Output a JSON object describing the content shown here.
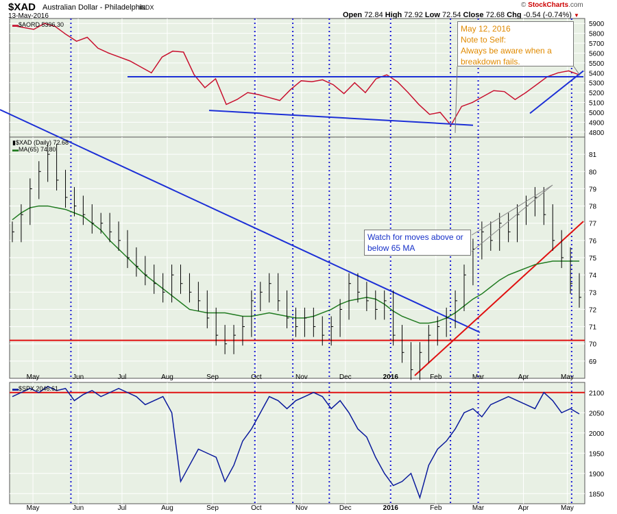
{
  "header": {
    "symbol": "$XAD",
    "name": "Australian Dollar - Philadelphia",
    "exchange": "INDX",
    "date": "13-May-2016",
    "brand_prefix": "© ",
    "brand_name": "StockCharts",
    "brand_suffix": ".com",
    "open_label": "Open",
    "open": "72.84",
    "high_label": "High",
    "high": "72.92",
    "low_label": "Low",
    "low": "72.54",
    "close_label": "Close",
    "close": "72.68",
    "chg_label": "Chg",
    "chg": "-0.54 (-0.74%)",
    "chg_icon": "down-triangle"
  },
  "colors": {
    "aord": "#c8102e",
    "xad_bars": "#000000",
    "ma": "#1f7a1f",
    "spx": "#0a1a9c",
    "trend_blue": "#1c2fd6",
    "trend_red": "#e01010",
    "panel_bg": "#e8f0e4",
    "grid": "#ffffff",
    "dotted": "#1a1ad6"
  },
  "panel_labels": {
    "aord": "$AORD 5396.30",
    "xad": "$XAD (Daily) 72.68",
    "ma": "MA(65) 74.80",
    "spx": "$SPX 2046.61"
  },
  "annotations": {
    "note1": [
      "May 12, 2016",
      "Note to Self:",
      "Always be aware when a",
      "breakdown fails."
    ],
    "note2": "Watch for moves above or below 65 MA"
  },
  "x_axis": {
    "labels": [
      "May",
      "Jun",
      "Jul",
      "Aug",
      "Sep",
      "Oct",
      "Nov",
      "Dec",
      "2016",
      "Feb",
      "Mar",
      "Apr",
      "May"
    ]
  },
  "chart_data": [
    {
      "type": "line",
      "series": [
        {
          "name": "$AORD",
          "values": [
            5880,
            5860,
            5840,
            5900,
            5870,
            5790,
            5720,
            5760,
            5650,
            5600,
            5560,
            5520,
            5460,
            5400,
            5560,
            5620,
            5610,
            5380,
            5250,
            5340,
            5080,
            5130,
            5200,
            5180,
            5150,
            5120,
            5230,
            5320,
            5310,
            5330,
            5280,
            5190,
            5300,
            5200,
            5340,
            5380,
            5310,
            5200,
            5080,
            4980,
            5000,
            4870,
            5060,
            5100,
            5160,
            5220,
            5210,
            5130,
            5200,
            5280,
            5360,
            5400,
            5420,
            5380
          ]
        }
      ],
      "x_range": [
        "2015-04-15",
        "2016-05-13"
      ],
      "ylim": [
        4750,
        5950
      ],
      "yticks": [
        4800,
        4900,
        5000,
        5100,
        5200,
        5300,
        5400,
        5500,
        5600,
        5700,
        5800,
        5900
      ]
    },
    {
      "type": "line",
      "series": [
        {
          "name": "$XAD",
          "values": [
            76.5,
            77.5,
            79,
            80,
            81,
            79.5,
            78.5,
            78,
            77.5,
            77,
            77,
            76.5,
            76,
            75,
            74.5,
            74,
            73.5,
            73,
            74,
            73.5,
            73,
            72.5,
            71.5,
            70.5,
            70,
            70.5,
            71,
            72.5,
            73,
            73.5,
            72.5,
            71.5,
            71,
            71.5,
            71,
            70.5,
            71,
            72,
            73.5,
            73,
            72.5,
            72,
            72.5,
            70.5,
            69.5,
            68.5,
            69.5,
            70.5,
            71,
            71.5,
            72.5,
            74,
            75.5,
            76.5,
            76,
            77,
            76.5,
            77.5,
            78,
            78.5,
            77.5,
            76,
            75,
            73.5,
            72.7
          ]
        },
        {
          "name": "MA(65)",
          "values": [
            77.2,
            77.6,
            77.9,
            78,
            78,
            77.9,
            77.8,
            77.6,
            77.4,
            77,
            76.6,
            76,
            75.5,
            75,
            74.5,
            74,
            73.6,
            73.2,
            72.8,
            72.4,
            72,
            71.9,
            71.8,
            71.8,
            71.8,
            71.7,
            71.6,
            71.6,
            71.7,
            71.8,
            71.7,
            71.6,
            71.5,
            71.5,
            71.6,
            71.8,
            72,
            72.3,
            72.5,
            72.6,
            72.7,
            72.6,
            72.3,
            71.9,
            71.6,
            71.4,
            71.2,
            71.2,
            71.3,
            71.5,
            71.8,
            72.2,
            72.6,
            72.9,
            73.3,
            73.7,
            74,
            74.2,
            74.4,
            74.6,
            74.7,
            74.8,
            74.8,
            74.8,
            74.8
          ]
        }
      ],
      "x_range": [
        "2015-04-15",
        "2016-05-13"
      ],
      "ylim": [
        68,
        82
      ],
      "yticks": [
        69,
        70,
        71,
        72,
        73,
        74,
        75,
        76,
        77,
        78,
        79,
        80,
        81
      ]
    },
    {
      "type": "line",
      "series": [
        {
          "name": "$SPX",
          "values": [
            2090,
            2100,
            2110,
            2100,
            2115,
            2105,
            2110,
            2080,
            2095,
            2105,
            2090,
            2100,
            2110,
            2100,
            2090,
            2070,
            2080,
            2090,
            2050,
            1880,
            1920,
            1960,
            1950,
            1940,
            1880,
            1920,
            1980,
            2010,
            2050,
            2090,
            2080,
            2060,
            2080,
            2090,
            2100,
            2090,
            2060,
            2080,
            2050,
            2010,
            1990,
            1940,
            1900,
            1870,
            1880,
            1900,
            1840,
            1920,
            1960,
            1980,
            2010,
            2050,
            2060,
            2040,
            2070,
            2080,
            2090,
            2080,
            2070,
            2060,
            2100,
            2080,
            2050,
            2060,
            2047
          ]
        }
      ],
      "x_range": [
        "2015-04-15",
        "2016-05-13"
      ],
      "ylim": [
        1825,
        2125
      ],
      "yticks": [
        1850,
        1900,
        1950,
        2000,
        2050,
        2100
      ]
    }
  ]
}
